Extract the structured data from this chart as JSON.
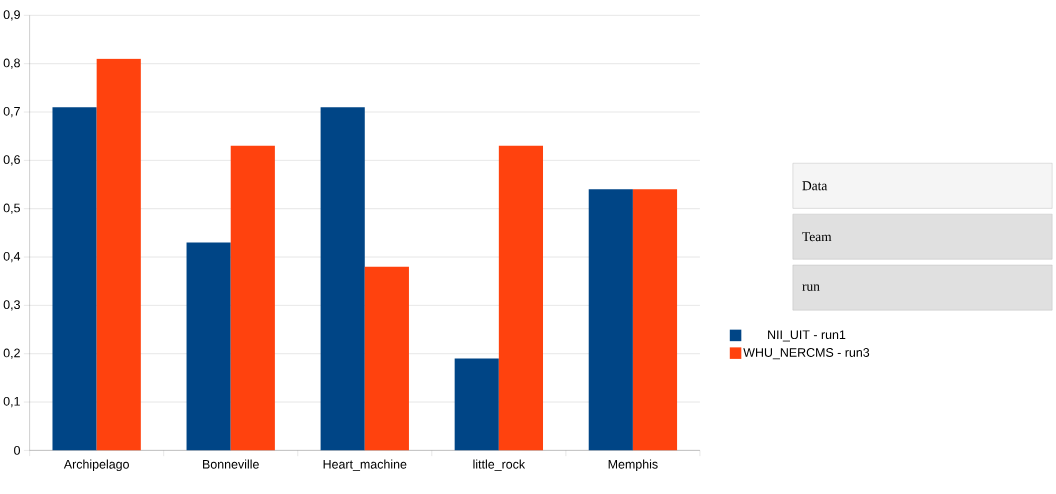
{
  "chart_data": {
    "type": "bar",
    "categories": [
      "Archipelago",
      "Bonneville",
      "Heart_machine",
      "little_rock",
      "Memphis"
    ],
    "series": [
      {
        "name": "NII_UIT - run1",
        "color": "#004586",
        "values": [
          0.71,
          0.43,
          0.71,
          0.19,
          0.54
        ]
      },
      {
        "name": "WHU_NERCMS - run3",
        "color": "#ff420e",
        "values": [
          0.81,
          0.63,
          0.38,
          0.63,
          0.54
        ]
      }
    ],
    "ylim": [
      0,
      0.9
    ],
    "yticks": [
      {
        "value": 0,
        "label": "0"
      },
      {
        "value": 0.1,
        "label": "0,1"
      },
      {
        "value": 0.2,
        "label": "0,2"
      },
      {
        "value": 0.3,
        "label": "0,3"
      },
      {
        "value": 0.4,
        "label": "0,4"
      },
      {
        "value": 0.5,
        "label": "0,5"
      },
      {
        "value": 0.6,
        "label": "0,6"
      },
      {
        "value": 0.7,
        "label": "0,7"
      },
      {
        "value": 0.8,
        "label": "0,8"
      },
      {
        "value": 0.9,
        "label": "0,9"
      }
    ],
    "grid": "y",
    "legend": "right",
    "annotations": [
      "Data",
      "Team",
      "run"
    ]
  }
}
